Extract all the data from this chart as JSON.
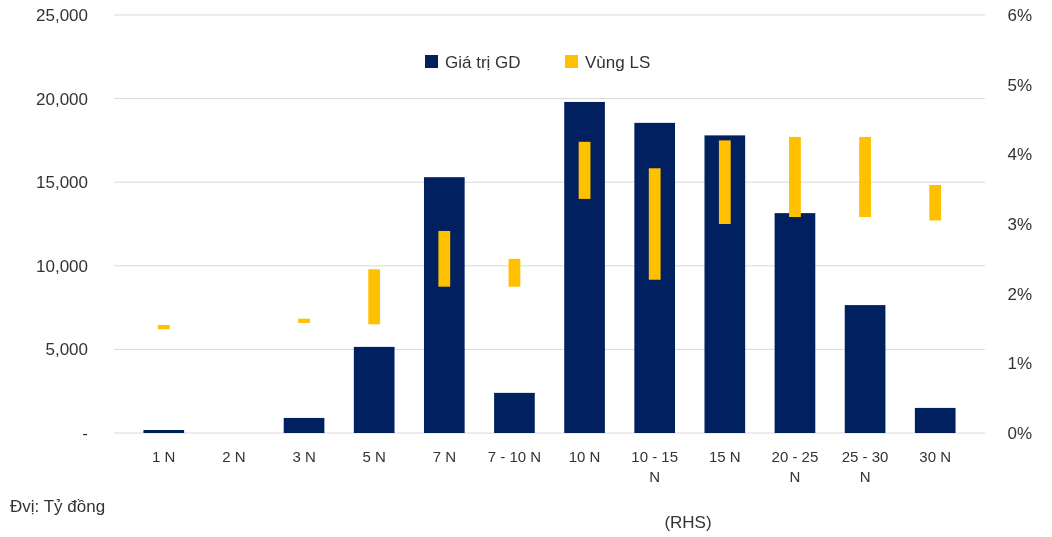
{
  "chart_data": {
    "type": "bar",
    "categories": [
      "1 N",
      "2 N",
      "3 N",
      "5 N",
      "7 N",
      "7 - 10 N",
      "10 N",
      "10 - 15 N",
      "15 N",
      "20 - 25 N",
      "25 - 30 N",
      "30 N"
    ],
    "series": [
      {
        "name": "Giá trị GD",
        "color": "#002060",
        "values": [
          180,
          0,
          900,
          5150,
          15300,
          2400,
          19800,
          18550,
          17800,
          13150,
          7650,
          1500
        ]
      },
      {
        "name": "Vùng LS",
        "color": "#ffc000",
        "axis": "y2",
        "base": [
          1.49,
          null,
          1.58,
          1.56,
          2.1,
          2.1,
          3.36,
          2.2,
          3.0,
          3.1,
          3.1,
          3.05
        ],
        "values": [
          0.06,
          null,
          0.06,
          0.79,
          0.8,
          0.4,
          0.82,
          1.6,
          1.2,
          1.15,
          1.15,
          0.51
        ]
      }
    ],
    "ylim": [
      0,
      25000
    ],
    "yticks": [
      {
        "value": 0,
        "label": "-"
      },
      {
        "value": 5000,
        "label": "5,000"
      },
      {
        "value": 10000,
        "label": "10,000"
      },
      {
        "value": 15000,
        "label": "15,000"
      },
      {
        "value": 20000,
        "label": "20,000"
      },
      {
        "value": 25000,
        "label": "25,000"
      }
    ],
    "y2lim": [
      0,
      6
    ],
    "y2ticks": [
      {
        "value": 0,
        "label": "0%"
      },
      {
        "value": 1,
        "label": "1%"
      },
      {
        "value": 2,
        "label": "2%"
      },
      {
        "value": 3,
        "label": "3%"
      },
      {
        "value": 4,
        "label": "4%"
      },
      {
        "value": 5,
        "label": "5%"
      },
      {
        "value": 6,
        "label": "6%"
      }
    ],
    "grid": "y",
    "legend": "top",
    "annotations": [
      "Đvị: Tỷ đồng",
      "(RHS)"
    ]
  }
}
